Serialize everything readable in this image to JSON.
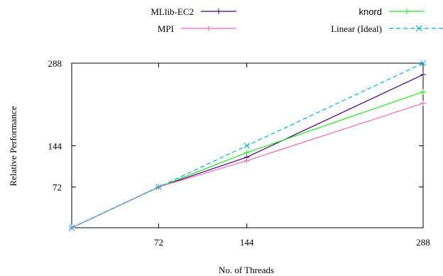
{
  "chart_data": {
    "type": "line",
    "title": "",
    "xlabel": "No. of Threads",
    "ylabel": "Relative Performance",
    "x": [
      1,
      72,
      144,
      288
    ],
    "xticks": [
      72,
      144,
      288
    ],
    "yticks": [
      72,
      144,
      288
    ],
    "xlim": [
      1,
      288
    ],
    "ylim": [
      1,
      288
    ],
    "grid": false,
    "legend_position": "top",
    "series": [
      {
        "name": "MLlib-EC2",
        "color": "#4b0082",
        "dash": "solid",
        "marker": "plus",
        "values": [
          1,
          72,
          124,
          268
        ]
      },
      {
        "name": "knord",
        "color": "#22ee22",
        "dash": "solid",
        "marker": "plus",
        "values": [
          1,
          72,
          132,
          238
        ]
      },
      {
        "name": "MPI",
        "color": "#ff66bb",
        "dash": "solid",
        "marker": "plus",
        "values": [
          1,
          72,
          118,
          218
        ]
      },
      {
        "name": "Linear (Ideal)",
        "color": "#00b4dd",
        "dash": "dashed",
        "marker": "x",
        "values": [
          1,
          72,
          144,
          288
        ]
      }
    ]
  }
}
